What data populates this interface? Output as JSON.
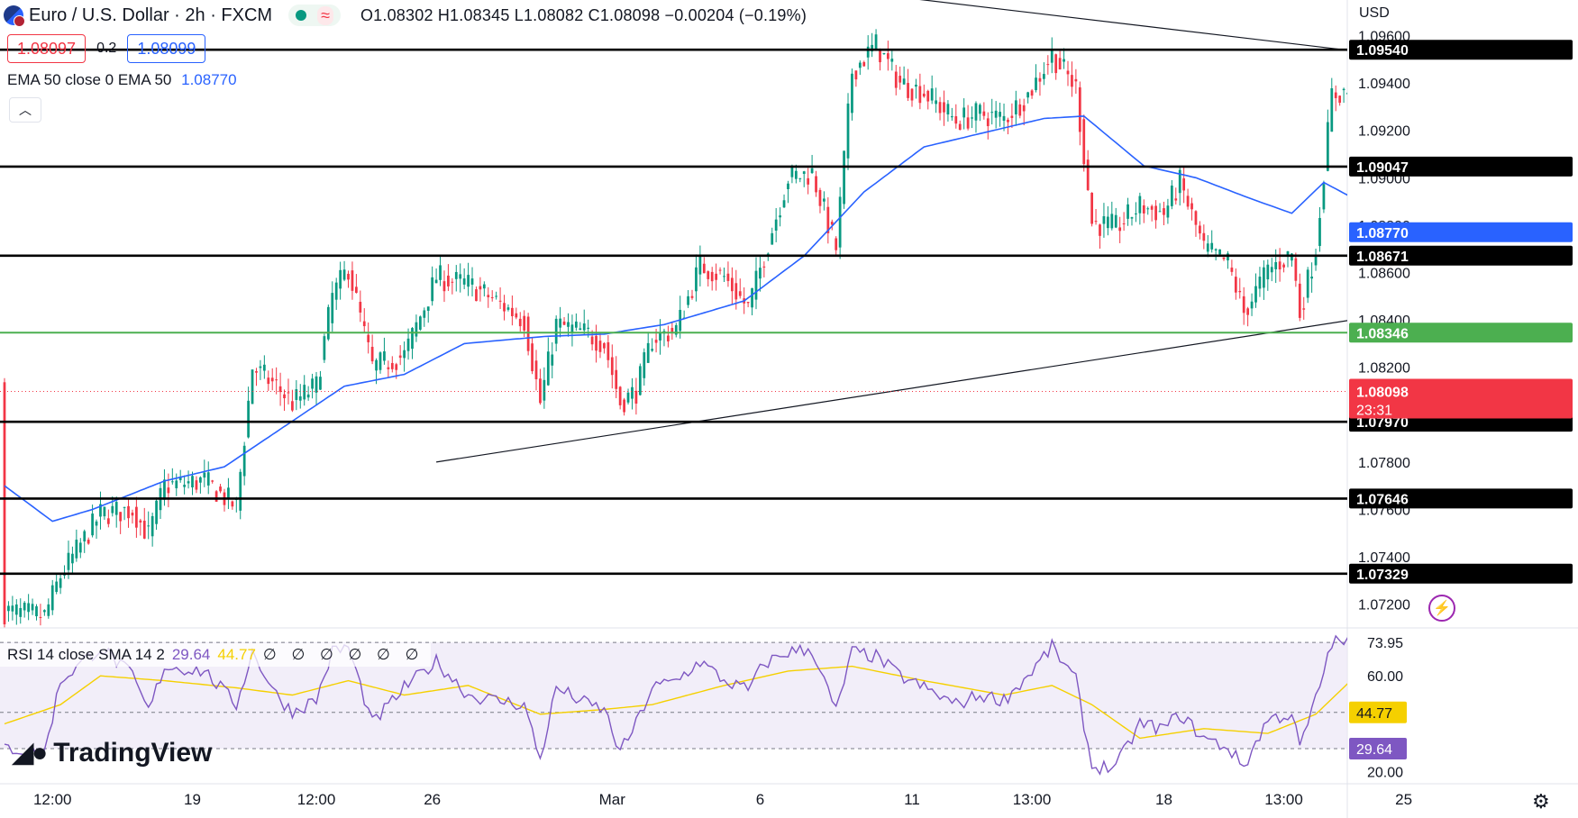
{
  "header": {
    "symbol": "Euro / U.S. Dollar",
    "interval": "2h",
    "exchange": "FXCM",
    "open": "O1.08302",
    "high": "H1.08345",
    "low": "L1.08082",
    "close": "C1.08098",
    "change": "−0.00204 (−0.19%)"
  },
  "quote": {
    "bid": "1.08097",
    "spread": "0.2",
    "ask": "1.08099"
  },
  "ema_legend": {
    "label": "EMA 50 close 0 EMA 50",
    "value": "1.08770"
  },
  "currency": "USD",
  "rsi_legend": {
    "label": "RSI 14 close SMA 14 2",
    "rsi": "29.64",
    "sma": "44.77",
    "empty_values": "∅ ∅ ∅ ∅ ∅ ∅"
  },
  "logo": {
    "text": "TradingView"
  },
  "colors": {
    "up": "#089981",
    "down": "#f23645",
    "ema": "#2962ff",
    "support": "#000000",
    "green_level": "#4caf50",
    "rsi": "#7e57c2",
    "rsi_sma": "#f5d000"
  },
  "chart_data": [
    {
      "type": "candlestick",
      "title": "Euro / U.S. Dollar · 2h · FXCM",
      "xlabel": "",
      "ylabel": "",
      "ylim": [
        1.071,
        1.0975
      ],
      "y_ticks": [
        "1.09600",
        "1.09400",
        "1.09200",
        "1.09000",
        "1.08800",
        "1.08600",
        "1.08400",
        "1.08200",
        "1.08000",
        "1.07800",
        "1.07600",
        "1.07400",
        "1.07200"
      ],
      "x_ticks": [
        "12:00",
        "19",
        "12:00",
        "26",
        "Mar",
        "6",
        "11",
        "13:00",
        "18",
        "13:00",
        "25"
      ],
      "x_tick_index": [
        12,
        47,
        78,
        107,
        152,
        189,
        227,
        257,
        290,
        320,
        350
      ],
      "horizontal_levels": [
        {
          "value": 1.0954,
          "label": "1.09540",
          "kind": "support"
        },
        {
          "value": 1.09047,
          "label": "1.09047",
          "kind": "support"
        },
        {
          "value": 1.08671,
          "label": "1.08671",
          "kind": "support"
        },
        {
          "value": 1.08346,
          "label": "1.08346",
          "kind": "green"
        },
        {
          "value": 1.0797,
          "label": "1.07970",
          "kind": "support"
        },
        {
          "value": 1.07646,
          "label": "1.07646",
          "kind": "support"
        },
        {
          "value": 1.07329,
          "label": "1.07329",
          "kind": "support"
        }
      ],
      "trendlines": [
        {
          "x1": 108,
          "y1": 1.078,
          "x2": 360,
          "y2": 1.0846
        },
        {
          "x1": 180,
          "y1": 1.0985,
          "x2": 360,
          "y2": 1.0949
        }
      ],
      "ema_label": "1.08770",
      "last_price": {
        "value": 1.08098,
        "label": "1.08098",
        "countdown": "23:31"
      },
      "ema50": [
        [
          0,
          1.077
        ],
        [
          12,
          1.0755
        ],
        [
          22,
          1.076
        ],
        [
          40,
          1.0772
        ],
        [
          55,
          1.0778
        ],
        [
          70,
          1.0795
        ],
        [
          85,
          1.0812
        ],
        [
          100,
          1.0817
        ],
        [
          115,
          1.083
        ],
        [
          135,
          1.0833
        ],
        [
          150,
          1.0834
        ],
        [
          165,
          1.0838
        ],
        [
          185,
          1.0848
        ],
        [
          200,
          1.0867
        ],
        [
          215,
          1.0894
        ],
        [
          230,
          1.0913
        ],
        [
          245,
          1.0919
        ],
        [
          260,
          1.0925
        ],
        [
          270,
          1.0926
        ],
        [
          285,
          1.0905
        ],
        [
          298,
          1.09
        ],
        [
          312,
          1.0891
        ],
        [
          322,
          1.0885
        ],
        [
          330,
          1.0898
        ],
        [
          340,
          1.0889
        ]
      ],
      "ohlc_keypoints": [
        [
          0,
          1.0717
        ],
        [
          10,
          1.0715
        ],
        [
          14,
          1.0732
        ],
        [
          24,
          1.0758
        ],
        [
          32,
          1.076
        ],
        [
          36,
          1.0749
        ],
        [
          40,
          1.077
        ],
        [
          50,
          1.0772
        ],
        [
          58,
          1.0761
        ],
        [
          62,
          1.082
        ],
        [
          68,
          1.0812
        ],
        [
          72,
          1.0805
        ],
        [
          78,
          1.0812
        ],
        [
          82,
          1.085
        ],
        [
          86,
          1.0862
        ],
        [
          92,
          1.082
        ],
        [
          100,
          1.0825
        ],
        [
          108,
          1.0858
        ],
        [
          116,
          1.0855
        ],
        [
          122,
          1.0849
        ],
        [
          130,
          1.084
        ],
        [
          134,
          1.0805
        ],
        [
          138,
          1.0838
        ],
        [
          146,
          1.0834
        ],
        [
          150,
          1.083
        ],
        [
          154,
          1.0805
        ],
        [
          158,
          1.081
        ],
        [
          162,
          1.0832
        ],
        [
          168,
          1.0836
        ],
        [
          174,
          1.0863
        ],
        [
          180,
          1.0858
        ],
        [
          186,
          1.0845
        ],
        [
          190,
          1.0867
        ],
        [
          196,
          1.09
        ],
        [
          202,
          1.0902
        ],
        [
          208,
          1.087
        ],
        [
          212,
          1.0945
        ],
        [
          218,
          1.0956
        ],
        [
          224,
          1.094
        ],
        [
          230,
          1.0936
        ],
        [
          238,
          1.0924
        ],
        [
          244,
          1.0927
        ],
        [
          250,
          1.0925
        ],
        [
          256,
          1.0935
        ],
        [
          262,
          1.0952
        ],
        [
          268,
          1.0938
        ],
        [
          272,
          1.0881
        ],
        [
          278,
          1.0879
        ],
        [
          284,
          1.0888
        ],
        [
          290,
          1.0885
        ],
        [
          294,
          1.0898
        ],
        [
          300,
          1.087
        ],
        [
          306,
          1.0864
        ],
        [
          310,
          1.0843
        ],
        [
          316,
          1.0861
        ],
        [
          322,
          1.0868
        ],
        [
          324,
          1.0843
        ],
        [
          328,
          1.087
        ],
        [
          332,
          1.0935
        ],
        [
          338,
          1.0937
        ],
        [
          342,
          1.088
        ],
        [
          346,
          1.0861
        ],
        [
          350,
          1.0864
        ],
        [
          354,
          1.084
        ],
        [
          358,
          1.0812
        ]
      ],
      "last_index": 360
    },
    {
      "type": "line",
      "title": "RSI 14 close SMA 14 2",
      "ylim": [
        15,
        80
      ],
      "y_ticks": [
        "73.95",
        "60.00",
        "30.15",
        "20.00"
      ],
      "levels": [
        73.95,
        44.77,
        29.64
      ],
      "rsi_label": "29.64",
      "sma_label": "44.77",
      "rsi_keypoints": [
        [
          0,
          30
        ],
        [
          10,
          28
        ],
        [
          14,
          58
        ],
        [
          24,
          72
        ],
        [
          32,
          60
        ],
        [
          36,
          45
        ],
        [
          40,
          64
        ],
        [
          50,
          62
        ],
        [
          58,
          48
        ],
        [
          62,
          70
        ],
        [
          68,
          52
        ],
        [
          72,
          45
        ],
        [
          78,
          50
        ],
        [
          82,
          70
        ],
        [
          86,
          72
        ],
        [
          92,
          40
        ],
        [
          100,
          55
        ],
        [
          108,
          66
        ],
        [
          116,
          52
        ],
        [
          122,
          50
        ],
        [
          130,
          48
        ],
        [
          134,
          25
        ],
        [
          138,
          55
        ],
        [
          146,
          48
        ],
        [
          150,
          46
        ],
        [
          154,
          28
        ],
        [
          158,
          40
        ],
        [
          162,
          55
        ],
        [
          168,
          58
        ],
        [
          174,
          66
        ],
        [
          180,
          58
        ],
        [
          186,
          54
        ],
        [
          190,
          65
        ],
        [
          196,
          70
        ],
        [
          202,
          71
        ],
        [
          208,
          45
        ],
        [
          212,
          70
        ],
        [
          218,
          68
        ],
        [
          224,
          60
        ],
        [
          230,
          55
        ],
        [
          238,
          48
        ],
        [
          244,
          52
        ],
        [
          250,
          50
        ],
        [
          256,
          60
        ],
        [
          262,
          72
        ],
        [
          268,
          58
        ],
        [
          272,
          22
        ],
        [
          278,
          22
        ],
        [
          284,
          40
        ],
        [
          290,
          38
        ],
        [
          294,
          44
        ],
        [
          300,
          34
        ],
        [
          306,
          30
        ],
        [
          310,
          22
        ],
        [
          316,
          42
        ],
        [
          322,
          44
        ],
        [
          324,
          30
        ],
        [
          328,
          50
        ],
        [
          332,
          74
        ],
        [
          338,
          74
        ],
        [
          342,
          44
        ],
        [
          346,
          40
        ],
        [
          350,
          40
        ],
        [
          354,
          32
        ],
        [
          358,
          29.64
        ]
      ],
      "sma_keypoints": [
        [
          0,
          40
        ],
        [
          14,
          48
        ],
        [
          24,
          60
        ],
        [
          40,
          58
        ],
        [
          58,
          55
        ],
        [
          72,
          52
        ],
        [
          86,
          58
        ],
        [
          100,
          52
        ],
        [
          116,
          56
        ],
        [
          134,
          44
        ],
        [
          150,
          46
        ],
        [
          162,
          48
        ],
        [
          180,
          56
        ],
        [
          196,
          62
        ],
        [
          212,
          64
        ],
        [
          230,
          58
        ],
        [
          250,
          52
        ],
        [
          262,
          56
        ],
        [
          272,
          48
        ],
        [
          284,
          34
        ],
        [
          300,
          38
        ],
        [
          316,
          36
        ],
        [
          328,
          44
        ],
        [
          338,
          60
        ],
        [
          346,
          56
        ],
        [
          358,
          44.77
        ]
      ]
    }
  ]
}
